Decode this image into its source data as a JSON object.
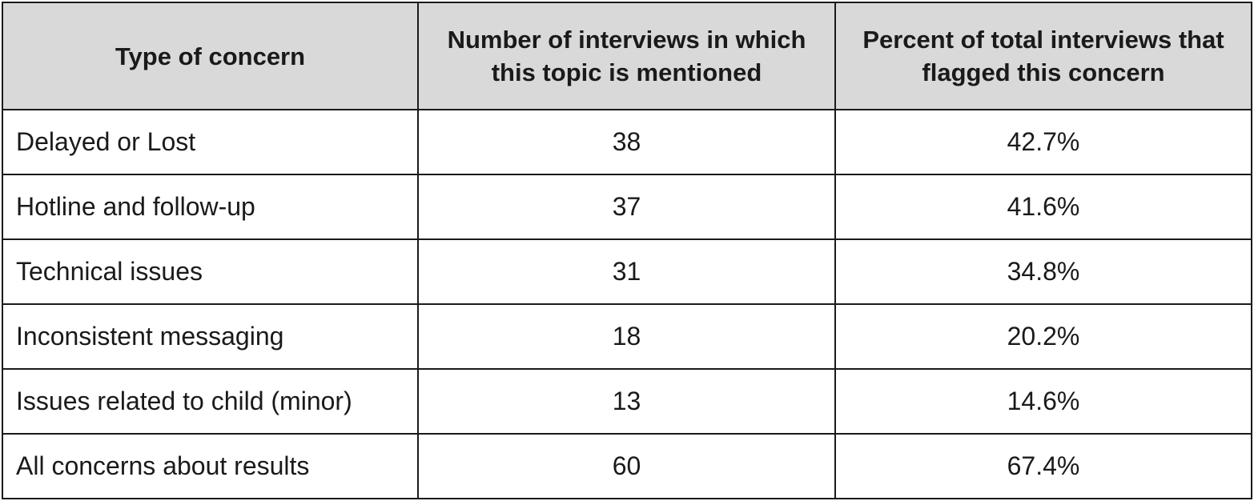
{
  "table": {
    "headers": {
      "type": "Type of concern",
      "count": "Number of interviews in which this topic is mentioned",
      "percent": "Percent of total interviews that flagged this concern"
    },
    "rows": [
      {
        "type": "Delayed or Lost",
        "count": "38",
        "percent": "42.7%"
      },
      {
        "type": "Hotline and follow-up",
        "count": "37",
        "percent": "41.6%"
      },
      {
        "type": "Technical issues",
        "count": "31",
        "percent": "34.8%"
      },
      {
        "type": "Inconsistent messaging",
        "count": "18",
        "percent": "20.2%"
      },
      {
        "type": "Issues related to child (minor)",
        "count": "13",
        "percent": "14.6%"
      },
      {
        "type": "All concerns about results",
        "count": "60",
        "percent": "67.4%"
      }
    ]
  }
}
